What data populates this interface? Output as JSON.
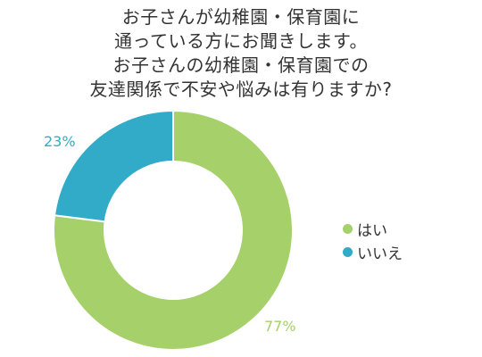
{
  "chart_data": {
    "type": "pie",
    "donut": true,
    "title_lines": [
      "お子さんが幼稚園・保育園に",
      "通っている方にお聞きします。",
      "お子さんの幼稚園・保育園での",
      "友達関係で不安や悩みは有りますか?"
    ],
    "categories": [
      "はい",
      "いいえ"
    ],
    "values": [
      77,
      23
    ],
    "value_labels": [
      "77%",
      "23%"
    ],
    "colors": [
      "#a6d06a",
      "#31abc8"
    ],
    "legend_position": "right"
  }
}
